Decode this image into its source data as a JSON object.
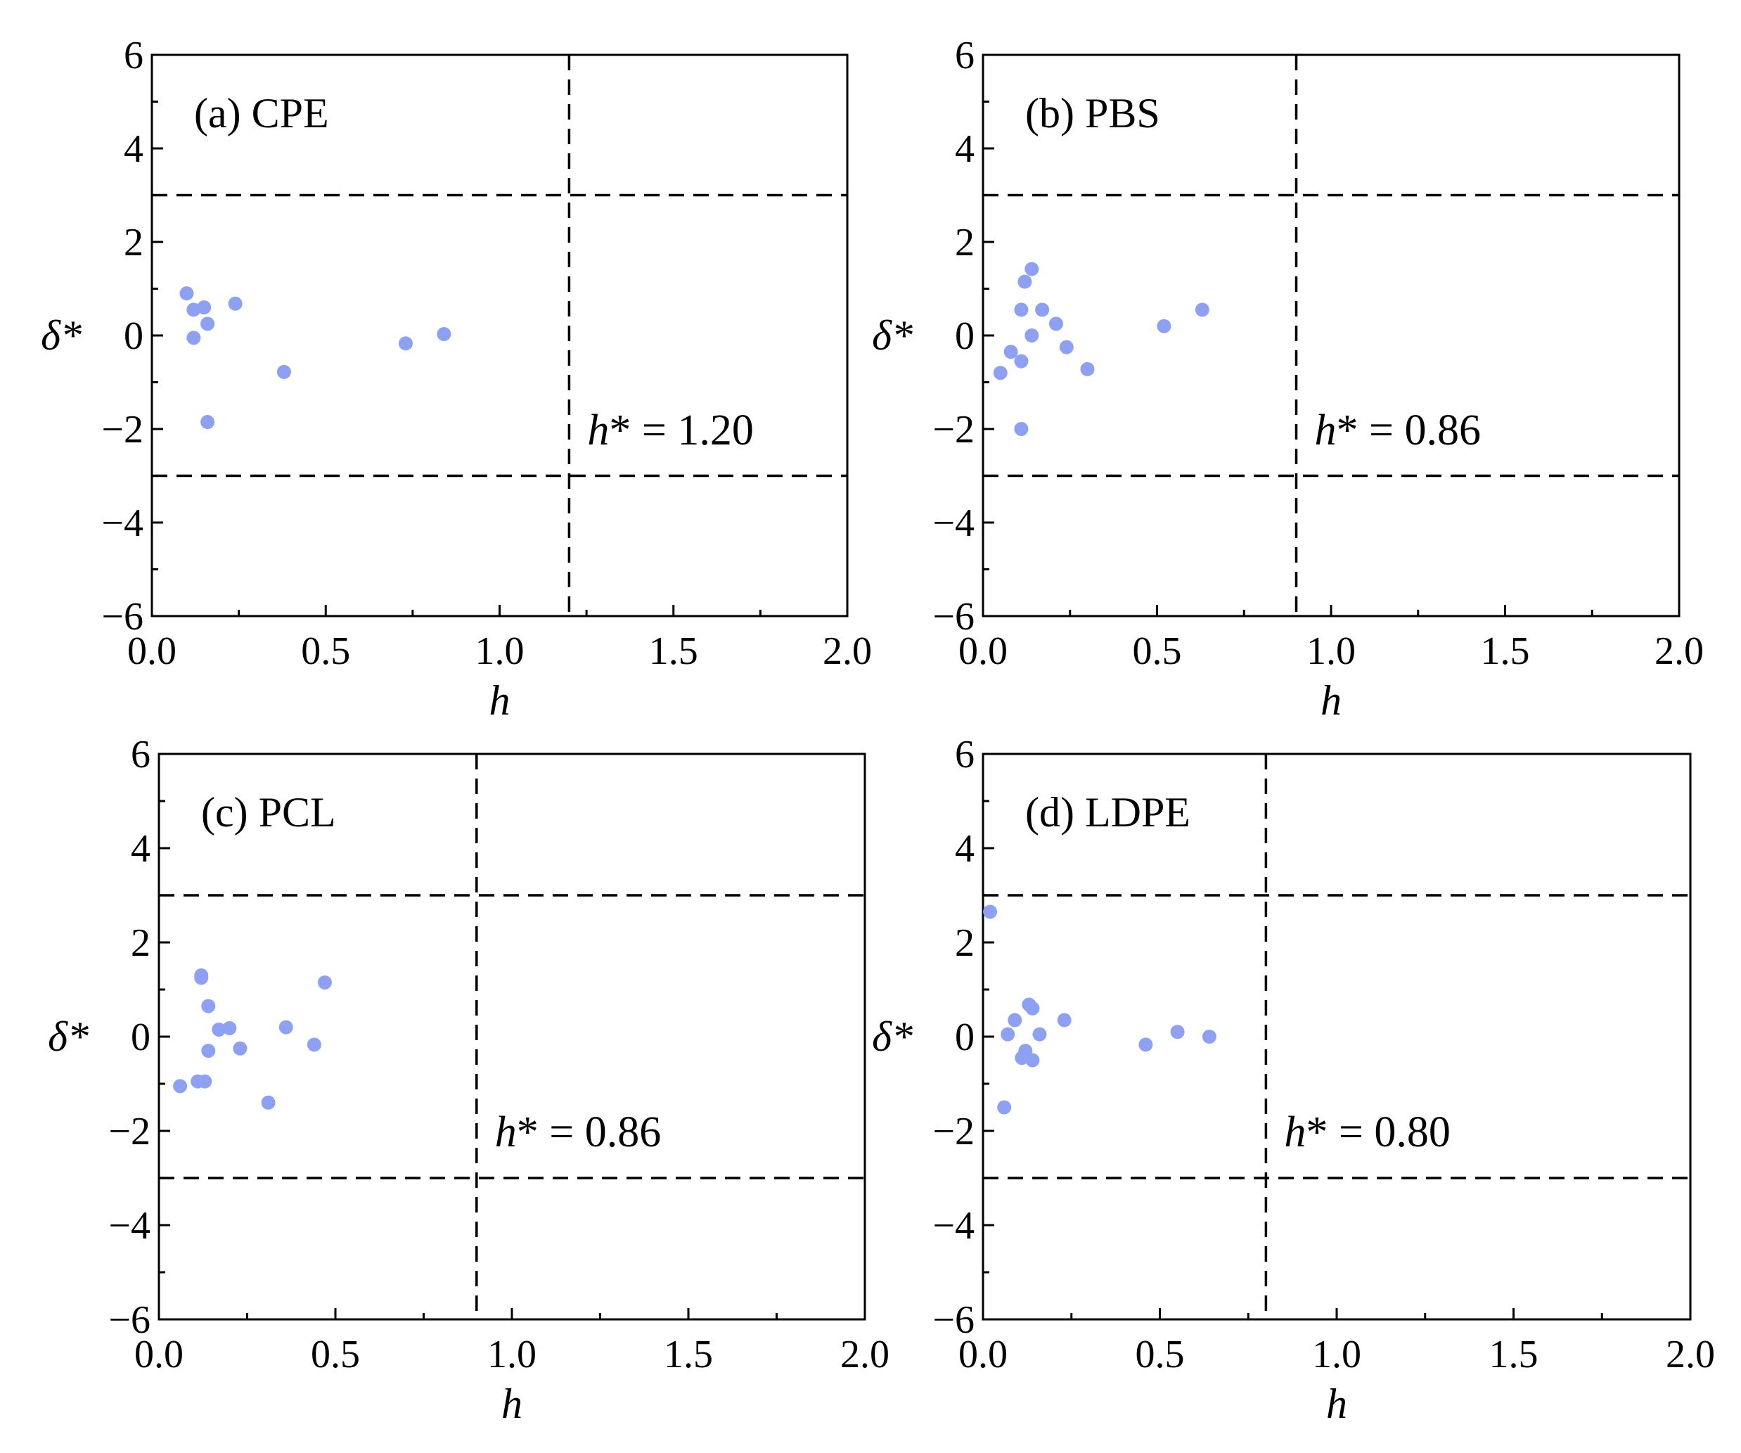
{
  "figure": {
    "marker_color": "#8ea0f2"
  },
  "chart_data": [
    {
      "type": "scatter",
      "panel_label": "(a) CPE",
      "xlabel": "h",
      "ylabel": "δ*",
      "xlim": [
        0,
        2
      ],
      "ylim": [
        -6,
        6
      ],
      "xticks": [
        0,
        0.5,
        1,
        1.5,
        2
      ],
      "xtick_labels": [
        "0.0",
        "0.5",
        "1.0",
        "1.5",
        "2.0"
      ],
      "yticks": [
        -6,
        -4,
        -2,
        0,
        2,
        4,
        6
      ],
      "ytick_labels": [
        "−6",
        "−4",
        "−2",
        "0",
        "2",
        "4",
        "6"
      ],
      "h_star": 1.2,
      "h_star_label": "h* = 1.20",
      "delta_limits": [
        -3,
        3
      ],
      "points": [
        [
          0.1,
          0.9
        ],
        [
          0.12,
          0.55
        ],
        [
          0.15,
          0.6
        ],
        [
          0.24,
          0.68
        ],
        [
          0.16,
          0.25
        ],
        [
          0.12,
          -0.05
        ],
        [
          0.38,
          -0.78
        ],
        [
          0.73,
          -0.17
        ],
        [
          0.84,
          0.03
        ],
        [
          0.16,
          -1.85
        ]
      ]
    },
    {
      "type": "scatter",
      "panel_label": "(b) PBS",
      "xlabel": "h",
      "ylabel": "δ*",
      "xlim": [
        0,
        2
      ],
      "ylim": [
        -6,
        6
      ],
      "xticks": [
        0,
        0.5,
        1,
        1.5,
        2
      ],
      "xtick_labels": [
        "0.0",
        "0.5",
        "1.0",
        "1.5",
        "2.0"
      ],
      "yticks": [
        -6,
        -4,
        -2,
        0,
        2,
        4,
        6
      ],
      "ytick_labels": [
        "−6",
        "−4",
        "−2",
        "0",
        "2",
        "4",
        "6"
      ],
      "h_star": 0.9,
      "h_star_label": "h* = 0.86",
      "delta_limits": [
        -3,
        3
      ],
      "points": [
        [
          0.14,
          1.42
        ],
        [
          0.12,
          1.15
        ],
        [
          0.11,
          0.55
        ],
        [
          0.17,
          0.55
        ],
        [
          0.21,
          0.25
        ],
        [
          0.14,
          0.0
        ],
        [
          0.24,
          -0.25
        ],
        [
          0.08,
          -0.35
        ],
        [
          0.11,
          -0.55
        ],
        [
          0.3,
          -0.72
        ],
        [
          0.05,
          -0.8
        ],
        [
          0.52,
          0.2
        ],
        [
          0.63,
          0.55
        ],
        [
          0.11,
          -2.0
        ]
      ]
    },
    {
      "type": "scatter",
      "panel_label": "(c) PCL",
      "xlabel": "h",
      "ylabel": "δ*",
      "xlim": [
        0,
        2
      ],
      "ylim": [
        -6,
        6
      ],
      "xticks": [
        0,
        0.5,
        1,
        1.5,
        2
      ],
      "xtick_labels": [
        "0.0",
        "0.5",
        "1.0",
        "1.5",
        "2.0"
      ],
      "yticks": [
        -6,
        -4,
        -2,
        0,
        2,
        4,
        6
      ],
      "ytick_labels": [
        "−6",
        "−4",
        "−2",
        "0",
        "2",
        "4",
        "6"
      ],
      "h_star": 0.9,
      "h_star_label": "h* = 0.86",
      "delta_limits": [
        -3,
        3
      ],
      "points": [
        [
          0.12,
          1.3
        ],
        [
          0.12,
          1.25
        ],
        [
          0.47,
          1.15
        ],
        [
          0.14,
          0.65
        ],
        [
          0.17,
          0.15
        ],
        [
          0.2,
          0.18
        ],
        [
          0.36,
          0.2
        ],
        [
          0.14,
          -0.3
        ],
        [
          0.23,
          -0.25
        ],
        [
          0.44,
          -0.17
        ],
        [
          0.06,
          -1.05
        ],
        [
          0.11,
          -0.95
        ],
        [
          0.13,
          -0.95
        ],
        [
          0.31,
          -1.4
        ]
      ]
    },
    {
      "type": "scatter",
      "panel_label": "(d) LDPE",
      "xlabel": "h",
      "ylabel": "δ*",
      "xlim": [
        0,
        2
      ],
      "ylim": [
        -6,
        6
      ],
      "xticks": [
        0,
        0.5,
        1,
        1.5,
        2
      ],
      "xtick_labels": [
        "0.0",
        "0.5",
        "1.0",
        "1.5",
        "2.0"
      ],
      "yticks": [
        -6,
        -4,
        -2,
        0,
        2,
        4,
        6
      ],
      "ytick_labels": [
        "−6",
        "−4",
        "−2",
        "0",
        "2",
        "4",
        "6"
      ],
      "h_star": 0.8,
      "h_star_label": "h* = 0.80",
      "delta_limits": [
        -3,
        3
      ],
      "points": [
        [
          0.02,
          2.65
        ],
        [
          0.13,
          0.68
        ],
        [
          0.14,
          0.6
        ],
        [
          0.09,
          0.35
        ],
        [
          0.23,
          0.35
        ],
        [
          0.07,
          0.05
        ],
        [
          0.16,
          0.05
        ],
        [
          0.12,
          -0.3
        ],
        [
          0.11,
          -0.45
        ],
        [
          0.14,
          -0.5
        ],
        [
          0.46,
          -0.17
        ],
        [
          0.55,
          0.1
        ],
        [
          0.64,
          0.0
        ],
        [
          0.06,
          -1.5
        ]
      ]
    }
  ]
}
